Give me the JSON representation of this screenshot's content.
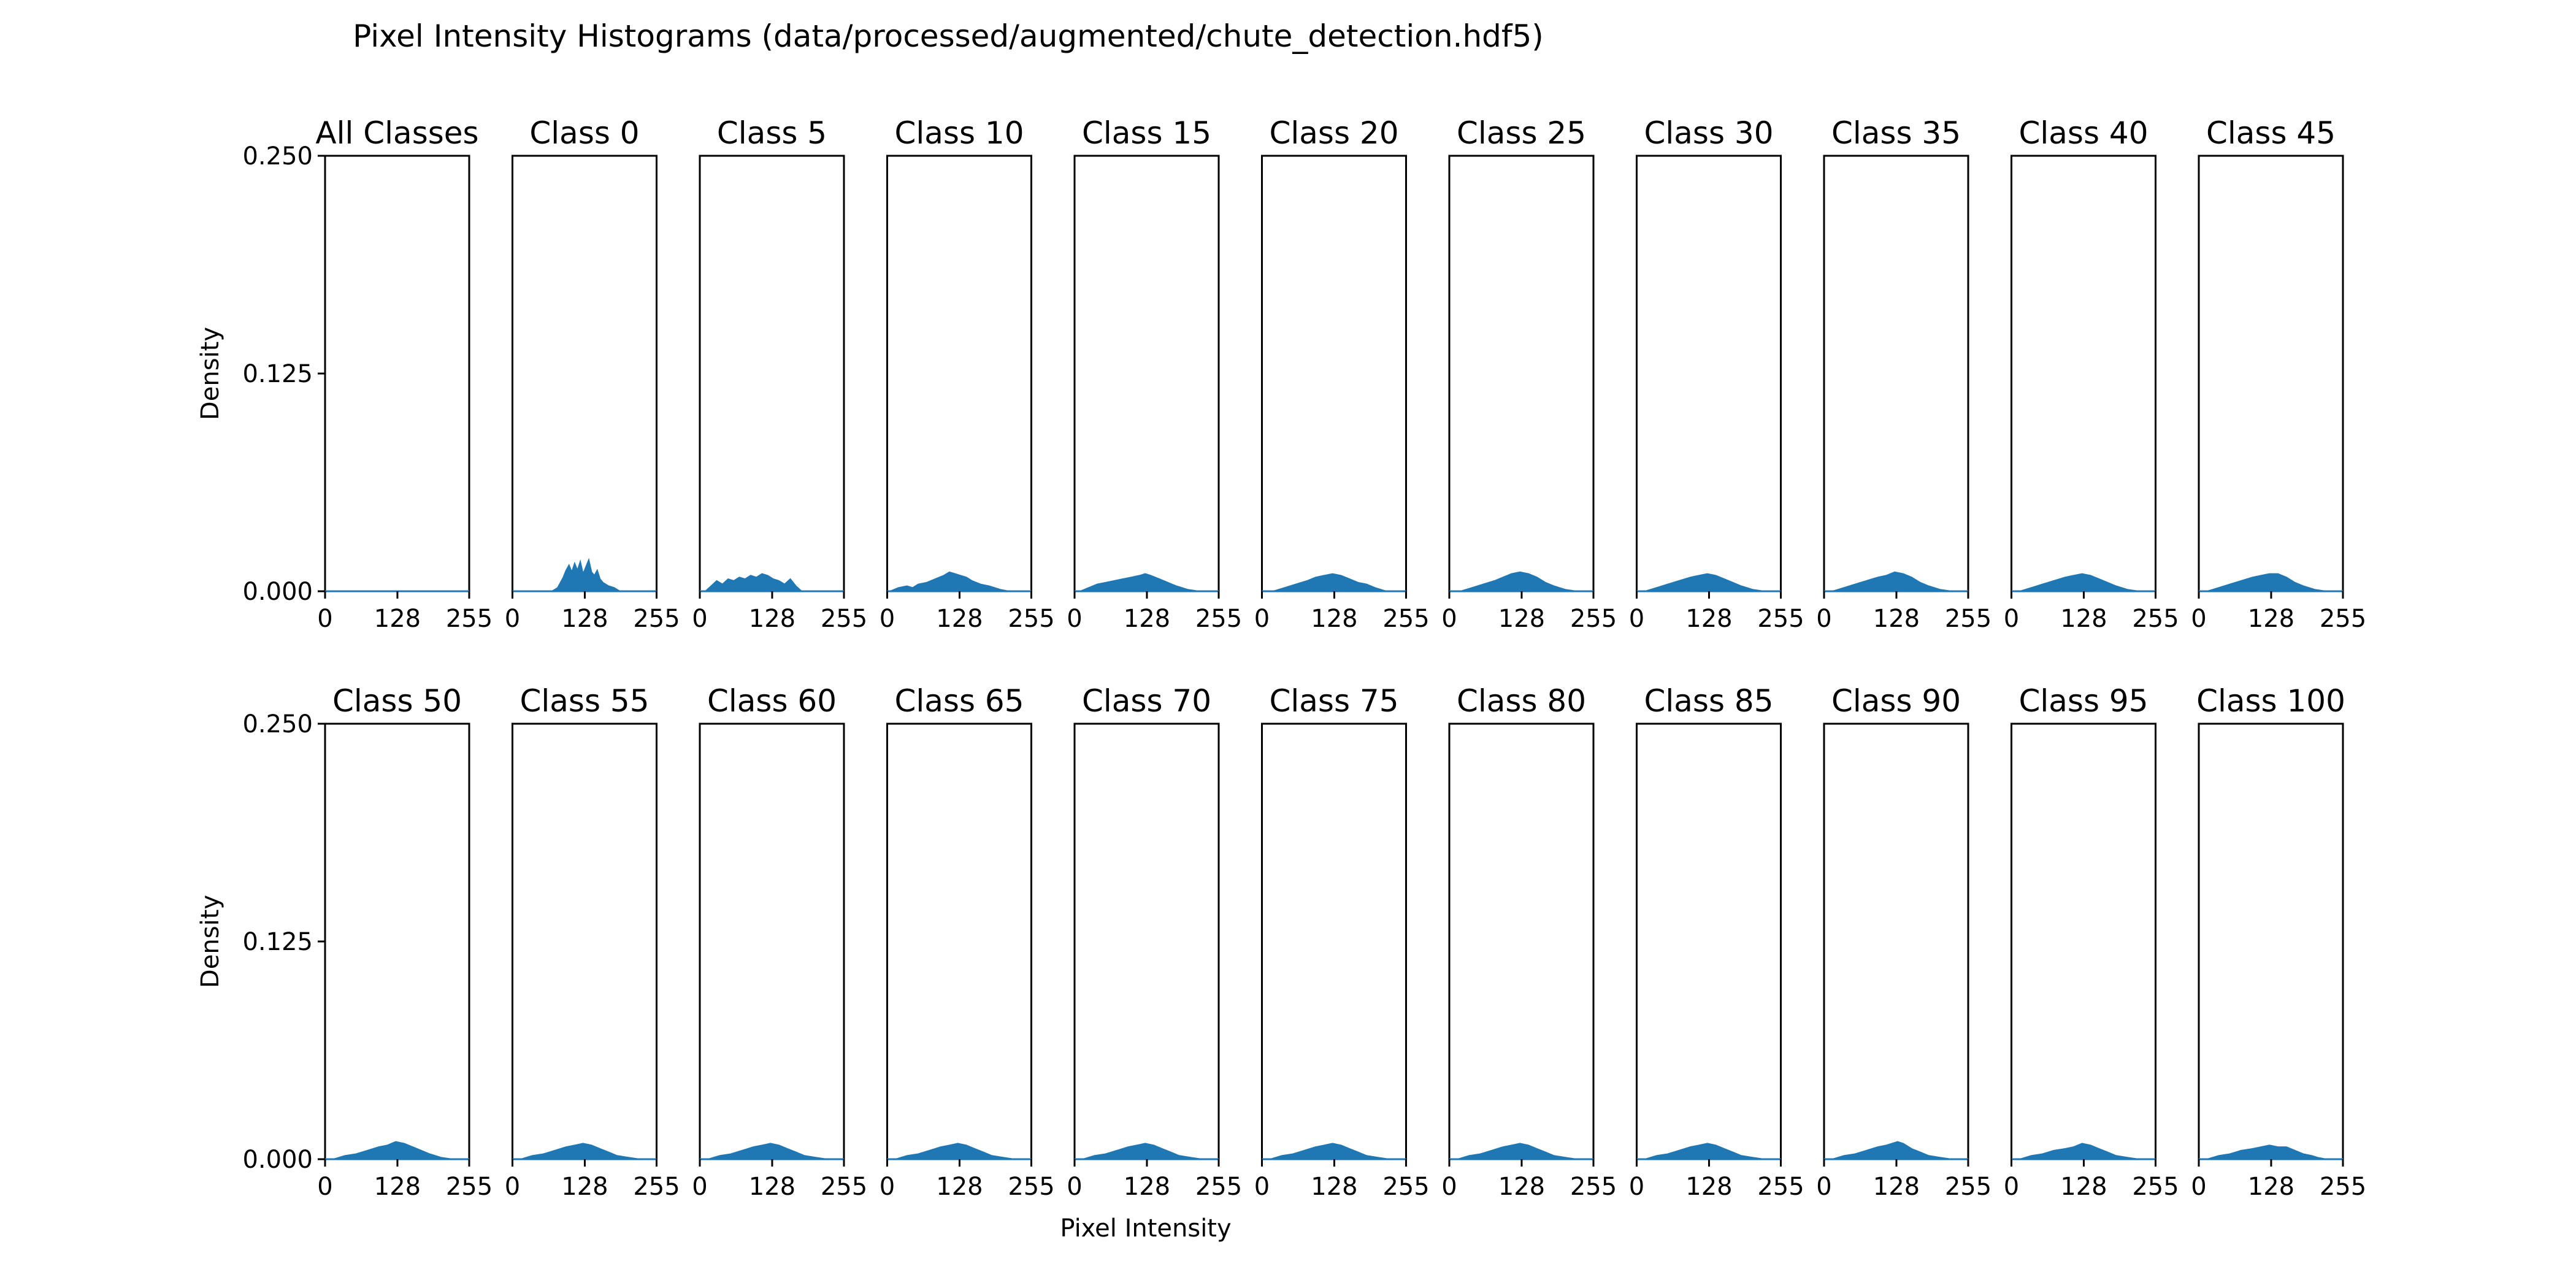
{
  "chart_data": {
    "type": "area",
    "title": "Pixel Intensity Histograms (data/processed/augmented/chute_detection.hdf5)",
    "xlabel": "Pixel Intensity",
    "ylabel": "Density",
    "xlim": [
      0,
      255
    ],
    "ylim": [
      0,
      0.25
    ],
    "x_ticks": [
      0,
      128,
      255
    ],
    "y_ticks": [
      0.0,
      0.125,
      0.25
    ],
    "y_tick_labels": [
      "0.000",
      "0.125",
      "0.250"
    ],
    "grid": false,
    "fill_color": "#1f77b4",
    "layout": {
      "rows": 2,
      "cols": 11
    },
    "panels": [
      {
        "title": "All Classes",
        "density": []
      },
      {
        "title": "Class 0",
        "density": [
          [
            70,
            0
          ],
          [
            80,
            0.002
          ],
          [
            90,
            0.008
          ],
          [
            95,
            0.012
          ],
          [
            100,
            0.015
          ],
          [
            105,
            0.011
          ],
          [
            110,
            0.016
          ],
          [
            115,
            0.012
          ],
          [
            120,
            0.017
          ],
          [
            125,
            0.01
          ],
          [
            130,
            0.014
          ],
          [
            135,
            0.018
          ],
          [
            140,
            0.011
          ],
          [
            145,
            0.009
          ],
          [
            150,
            0.012
          ],
          [
            155,
            0.007
          ],
          [
            160,
            0.005
          ],
          [
            170,
            0.003
          ],
          [
            180,
            0.002
          ],
          [
            190,
            0
          ]
        ]
      },
      {
        "title": "Class 5",
        "density": [
          [
            10,
            0
          ],
          [
            20,
            0.003
          ],
          [
            30,
            0.006
          ],
          [
            40,
            0.004
          ],
          [
            50,
            0.007
          ],
          [
            60,
            0.006
          ],
          [
            70,
            0.008
          ],
          [
            80,
            0.007
          ],
          [
            90,
            0.009
          ],
          [
            100,
            0.008
          ],
          [
            110,
            0.01
          ],
          [
            120,
            0.009
          ],
          [
            130,
            0.007
          ],
          [
            140,
            0.006
          ],
          [
            150,
            0.004
          ],
          [
            160,
            0.007
          ],
          [
            170,
            0.003
          ],
          [
            180,
            0
          ]
        ]
      },
      {
        "title": "Class 10",
        "density": [
          [
            5,
            0
          ],
          [
            20,
            0.002
          ],
          [
            35,
            0.003
          ],
          [
            45,
            0.002
          ],
          [
            55,
            0.004
          ],
          [
            70,
            0.005
          ],
          [
            85,
            0.007
          ],
          [
            100,
            0.009
          ],
          [
            110,
            0.011
          ],
          [
            120,
            0.01
          ],
          [
            130,
            0.009
          ],
          [
            140,
            0.008
          ],
          [
            150,
            0.006
          ],
          [
            165,
            0.004
          ],
          [
            180,
            0.003
          ],
          [
            200,
            0.001
          ],
          [
            215,
            0
          ]
        ]
      },
      {
        "title": "Class 15",
        "density": [
          [
            10,
            0
          ],
          [
            25,
            0.002
          ],
          [
            40,
            0.004
          ],
          [
            55,
            0.005
          ],
          [
            70,
            0.006
          ],
          [
            85,
            0.007
          ],
          [
            100,
            0.008
          ],
          [
            115,
            0.009
          ],
          [
            125,
            0.01
          ],
          [
            135,
            0.009
          ],
          [
            150,
            0.007
          ],
          [
            165,
            0.005
          ],
          [
            180,
            0.003
          ],
          [
            200,
            0.001
          ],
          [
            220,
            0
          ]
        ]
      },
      {
        "title": "Class 20",
        "density": [
          [
            20,
            0
          ],
          [
            40,
            0.002
          ],
          [
            60,
            0.004
          ],
          [
            80,
            0.006
          ],
          [
            95,
            0.008
          ],
          [
            110,
            0.009
          ],
          [
            125,
            0.01
          ],
          [
            140,
            0.009
          ],
          [
            155,
            0.007
          ],
          [
            170,
            0.005
          ],
          [
            185,
            0.004
          ],
          [
            200,
            0.002
          ],
          [
            220,
            0
          ]
        ]
      },
      {
        "title": "Class 25",
        "density": [
          [
            20,
            0
          ],
          [
            40,
            0.002
          ],
          [
            60,
            0.004
          ],
          [
            80,
            0.006
          ],
          [
            95,
            0.008
          ],
          [
            110,
            0.01
          ],
          [
            125,
            0.011
          ],
          [
            140,
            0.01
          ],
          [
            155,
            0.008
          ],
          [
            170,
            0.005
          ],
          [
            185,
            0.003
          ],
          [
            205,
            0.001
          ],
          [
            225,
            0
          ]
        ]
      },
      {
        "title": "Class 30",
        "density": [
          [
            15,
            0
          ],
          [
            35,
            0.002
          ],
          [
            55,
            0.004
          ],
          [
            75,
            0.006
          ],
          [
            95,
            0.008
          ],
          [
            110,
            0.009
          ],
          [
            125,
            0.01
          ],
          [
            140,
            0.009
          ],
          [
            155,
            0.007
          ],
          [
            170,
            0.005
          ],
          [
            185,
            0.003
          ],
          [
            205,
            0.001
          ],
          [
            225,
            0
          ]
        ]
      },
      {
        "title": "Class 35",
        "density": [
          [
            15,
            0
          ],
          [
            35,
            0.002
          ],
          [
            55,
            0.004
          ],
          [
            75,
            0.006
          ],
          [
            95,
            0.008
          ],
          [
            110,
            0.009
          ],
          [
            125,
            0.011
          ],
          [
            140,
            0.01
          ],
          [
            155,
            0.008
          ],
          [
            170,
            0.005
          ],
          [
            185,
            0.003
          ],
          [
            205,
            0.001
          ],
          [
            225,
            0
          ]
        ]
      },
      {
        "title": "Class 40",
        "density": [
          [
            15,
            0
          ],
          [
            35,
            0.002
          ],
          [
            55,
            0.004
          ],
          [
            75,
            0.006
          ],
          [
            95,
            0.008
          ],
          [
            110,
            0.009
          ],
          [
            125,
            0.01
          ],
          [
            140,
            0.009
          ],
          [
            155,
            0.007
          ],
          [
            170,
            0.005
          ],
          [
            185,
            0.003
          ],
          [
            205,
            0.001
          ],
          [
            225,
            0
          ]
        ]
      },
      {
        "title": "Class 45",
        "density": [
          [
            15,
            0
          ],
          [
            35,
            0.002
          ],
          [
            55,
            0.004
          ],
          [
            75,
            0.006
          ],
          [
            95,
            0.008
          ],
          [
            110,
            0.009
          ],
          [
            125,
            0.01
          ],
          [
            140,
            0.01
          ],
          [
            155,
            0.008
          ],
          [
            170,
            0.005
          ],
          [
            185,
            0.003
          ],
          [
            205,
            0.001
          ],
          [
            225,
            0
          ]
        ]
      },
      {
        "title": "Class 50",
        "density": [
          [
            15,
            0
          ],
          [
            35,
            0.002
          ],
          [
            55,
            0.003
          ],
          [
            75,
            0.005
          ],
          [
            95,
            0.007
          ],
          [
            110,
            0.008
          ],
          [
            125,
            0.01
          ],
          [
            140,
            0.009
          ],
          [
            155,
            0.007
          ],
          [
            170,
            0.005
          ],
          [
            185,
            0.003
          ],
          [
            205,
            0.001
          ],
          [
            225,
            0
          ]
        ]
      },
      {
        "title": "Class 55",
        "density": [
          [
            15,
            0
          ],
          [
            35,
            0.002
          ],
          [
            55,
            0.003
          ],
          [
            75,
            0.005
          ],
          [
            95,
            0.007
          ],
          [
            110,
            0.008
          ],
          [
            125,
            0.009
          ],
          [
            140,
            0.008
          ],
          [
            155,
            0.006
          ],
          [
            170,
            0.004
          ],
          [
            185,
            0.002
          ],
          [
            205,
            0.001
          ],
          [
            225,
            0
          ]
        ]
      },
      {
        "title": "Class 60",
        "density": [
          [
            15,
            0
          ],
          [
            35,
            0.002
          ],
          [
            55,
            0.003
          ],
          [
            75,
            0.005
          ],
          [
            95,
            0.007
          ],
          [
            110,
            0.008
          ],
          [
            125,
            0.009
          ],
          [
            140,
            0.008
          ],
          [
            155,
            0.006
          ],
          [
            170,
            0.004
          ],
          [
            185,
            0.002
          ],
          [
            205,
            0.001
          ],
          [
            225,
            0
          ]
        ]
      },
      {
        "title": "Class 65",
        "density": [
          [
            15,
            0
          ],
          [
            35,
            0.002
          ],
          [
            55,
            0.003
          ],
          [
            75,
            0.005
          ],
          [
            95,
            0.007
          ],
          [
            110,
            0.008
          ],
          [
            125,
            0.009
          ],
          [
            140,
            0.008
          ],
          [
            155,
            0.006
          ],
          [
            170,
            0.004
          ],
          [
            185,
            0.002
          ],
          [
            205,
            0.001
          ],
          [
            225,
            0
          ]
        ]
      },
      {
        "title": "Class 70",
        "density": [
          [
            15,
            0
          ],
          [
            35,
            0.002
          ],
          [
            55,
            0.003
          ],
          [
            75,
            0.005
          ],
          [
            95,
            0.007
          ],
          [
            110,
            0.008
          ],
          [
            125,
            0.009
          ],
          [
            140,
            0.008
          ],
          [
            155,
            0.006
          ],
          [
            170,
            0.004
          ],
          [
            185,
            0.002
          ],
          [
            205,
            0.001
          ],
          [
            225,
            0
          ]
        ]
      },
      {
        "title": "Class 75",
        "density": [
          [
            15,
            0
          ],
          [
            35,
            0.002
          ],
          [
            55,
            0.003
          ],
          [
            75,
            0.005
          ],
          [
            95,
            0.007
          ],
          [
            110,
            0.008
          ],
          [
            125,
            0.009
          ],
          [
            140,
            0.008
          ],
          [
            155,
            0.006
          ],
          [
            170,
            0.004
          ],
          [
            185,
            0.002
          ],
          [
            205,
            0.001
          ],
          [
            225,
            0
          ]
        ]
      },
      {
        "title": "Class 80",
        "density": [
          [
            15,
            0
          ],
          [
            35,
            0.002
          ],
          [
            55,
            0.003
          ],
          [
            75,
            0.005
          ],
          [
            95,
            0.007
          ],
          [
            110,
            0.008
          ],
          [
            125,
            0.009
          ],
          [
            140,
            0.008
          ],
          [
            155,
            0.006
          ],
          [
            170,
            0.004
          ],
          [
            185,
            0.002
          ],
          [
            205,
            0.001
          ],
          [
            225,
            0
          ]
        ]
      },
      {
        "title": "Class 85",
        "density": [
          [
            15,
            0
          ],
          [
            35,
            0.002
          ],
          [
            55,
            0.003
          ],
          [
            75,
            0.005
          ],
          [
            95,
            0.007
          ],
          [
            110,
            0.008
          ],
          [
            125,
            0.009
          ],
          [
            140,
            0.008
          ],
          [
            155,
            0.006
          ],
          [
            170,
            0.004
          ],
          [
            185,
            0.002
          ],
          [
            205,
            0.001
          ],
          [
            225,
            0
          ]
        ]
      },
      {
        "title": "Class 90",
        "density": [
          [
            15,
            0
          ],
          [
            35,
            0.002
          ],
          [
            55,
            0.003
          ],
          [
            75,
            0.005
          ],
          [
            95,
            0.007
          ],
          [
            110,
            0.008
          ],
          [
            120,
            0.009
          ],
          [
            130,
            0.01
          ],
          [
            140,
            0.009
          ],
          [
            155,
            0.006
          ],
          [
            170,
            0.004
          ],
          [
            185,
            0.002
          ],
          [
            205,
            0.001
          ],
          [
            225,
            0
          ]
        ]
      },
      {
        "title": "Class 95",
        "density": [
          [
            15,
            0
          ],
          [
            35,
            0.002
          ],
          [
            55,
            0.003
          ],
          [
            75,
            0.005
          ],
          [
            95,
            0.006
          ],
          [
            110,
            0.007
          ],
          [
            125,
            0.009
          ],
          [
            140,
            0.008
          ],
          [
            155,
            0.006
          ],
          [
            170,
            0.004
          ],
          [
            185,
            0.002
          ],
          [
            205,
            0.001
          ],
          [
            225,
            0
          ]
        ]
      },
      {
        "title": "Class 100",
        "density": [
          [
            15,
            0
          ],
          [
            35,
            0.002
          ],
          [
            55,
            0.003
          ],
          [
            75,
            0.005
          ],
          [
            95,
            0.006
          ],
          [
            110,
            0.007
          ],
          [
            125,
            0.008
          ],
          [
            140,
            0.007
          ],
          [
            155,
            0.007
          ],
          [
            170,
            0.005
          ],
          [
            185,
            0.003
          ],
          [
            200,
            0.002
          ],
          [
            210,
            0.001
          ],
          [
            225,
            0
          ]
        ]
      }
    ]
  }
}
